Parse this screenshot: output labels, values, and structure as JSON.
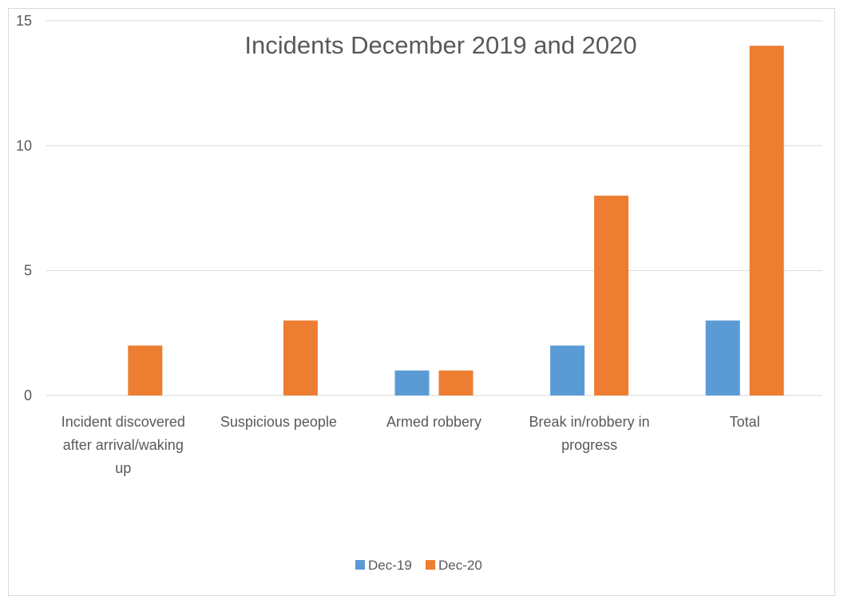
{
  "chart_data": {
    "type": "bar",
    "title": "Incidents December 2019 and 2020",
    "categories": [
      [
        "Incident discovered",
        "after arrival/waking",
        "up"
      ],
      [
        "Suspicious people"
      ],
      [
        "Armed robbery"
      ],
      [
        "Break in/robbery in",
        "progress"
      ],
      [
        "Total"
      ]
    ],
    "series": [
      {
        "name": "Dec-19",
        "color": "#5b9bd5",
        "values": [
          0,
          0,
          1,
          2,
          3
        ]
      },
      {
        "name": "Dec-20",
        "color": "#ed7d31",
        "values": [
          2,
          3,
          1,
          8,
          14
        ]
      }
    ],
    "ylim": [
      0,
      15
    ],
    "yticks": [
      0,
      5,
      10,
      15
    ],
    "grid": true,
    "gridColor": "#d9d9d9",
    "legend_position": "bottom"
  }
}
